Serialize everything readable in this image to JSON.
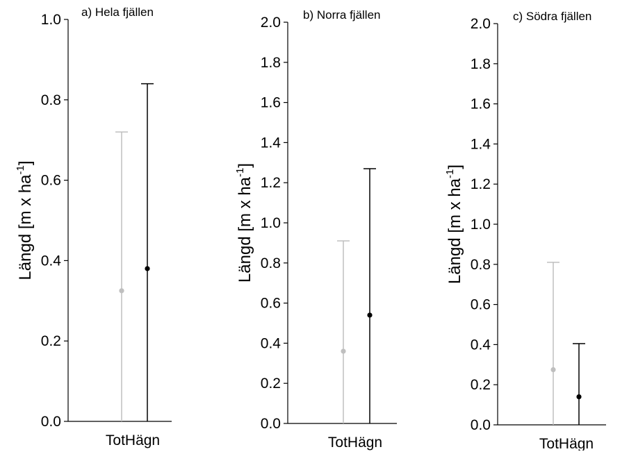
{
  "chart_data": [
    {
      "type": "errorbar",
      "title": "a) Hela fjällen",
      "ylabel": "Längd  [m x ha",
      "ylabel_sup": "-1",
      "ylabel_close": "]",
      "categories": [
        "TotHägn"
      ],
      "ylim": [
        0,
        1.0
      ],
      "yticks": [
        "0.0",
        "0.2",
        "0.4",
        "0.6",
        "0.8",
        "1.0"
      ],
      "grid": false,
      "series": [
        {
          "color": "#bfbfbf",
          "mean": [
            0.325
          ],
          "upper": [
            0.72
          ],
          "lower": [
            0.0
          ]
        },
        {
          "color": "#000000",
          "mean": [
            0.38
          ],
          "upper": [
            0.84
          ],
          "lower": [
            0.0
          ]
        }
      ]
    },
    {
      "type": "errorbar",
      "title": "b) Norra fjällen",
      "ylabel": "Längd  [m x ha",
      "ylabel_sup": "-1",
      "ylabel_close": "]",
      "categories": [
        "TotHägn"
      ],
      "ylim": [
        0,
        2.0
      ],
      "yticks": [
        "0.0",
        "0.2",
        "0.4",
        "0.6",
        "0.8",
        "1.0",
        "1.2",
        "1.4",
        "1.6",
        "1.8",
        "2.0"
      ],
      "grid": false,
      "series": [
        {
          "color": "#bfbfbf",
          "mean": [
            0.36
          ],
          "upper": [
            0.91
          ],
          "lower": [
            0.0
          ]
        },
        {
          "color": "#000000",
          "mean": [
            0.54
          ],
          "upper": [
            1.27
          ],
          "lower": [
            0.0
          ]
        }
      ]
    },
    {
      "type": "errorbar",
      "title": "c) Södra fjällen",
      "ylabel": "Längd  [m x ha",
      "ylabel_sup": "-1",
      "ylabel_close": "]",
      "categories": [
        "TotHägn"
      ],
      "ylim": [
        0,
        2.0
      ],
      "yticks": [
        "0.0",
        "0.2",
        "0.4",
        "0.6",
        "0.8",
        "1.0",
        "1.2",
        "1.4",
        "1.6",
        "1.8",
        "2.0"
      ],
      "grid": false,
      "series": [
        {
          "color": "#bfbfbf",
          "mean": [
            0.275
          ],
          "upper": [
            0.81
          ],
          "lower": [
            0.0
          ]
        },
        {
          "color": "#000000",
          "mean": [
            0.14
          ],
          "upper": [
            0.405
          ],
          "lower": [
            0.0
          ]
        }
      ]
    }
  ]
}
